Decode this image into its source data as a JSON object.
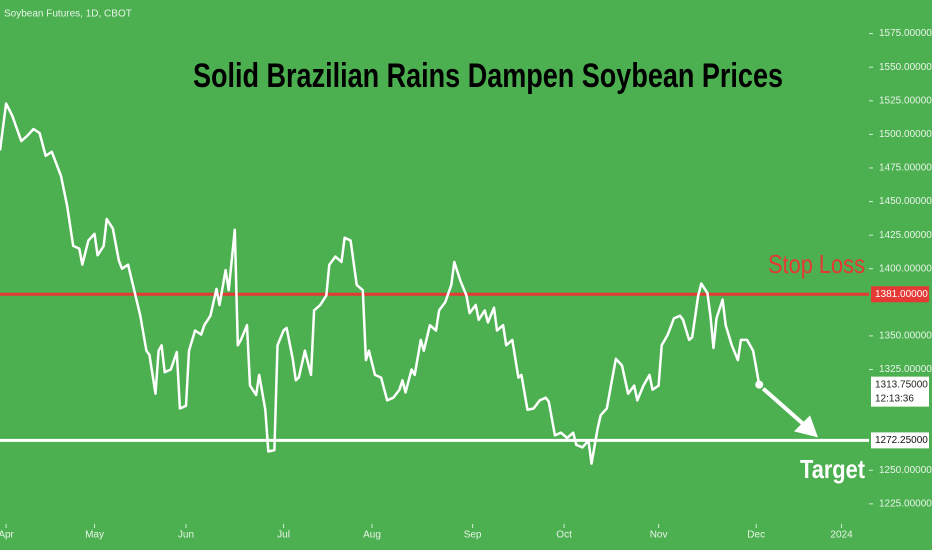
{
  "chart_data": {
    "type": "line",
    "source": "Soybean Futures, 1D, CBOT",
    "title": "Solid Brazilian Rains Dampen Soybean Prices",
    "color": "#ffffff",
    "background": "#4caf50",
    "x": [
      0,
      2,
      4,
      7,
      9,
      11,
      13,
      15,
      17,
      20,
      22,
      24,
      26,
      27,
      29,
      31,
      32,
      34,
      35,
      37,
      39,
      40,
      42,
      44,
      46,
      48,
      49,
      51,
      52,
      53,
      54,
      56,
      58,
      59,
      61,
      62,
      64,
      66,
      67,
      69,
      71,
      72,
      74,
      75,
      77,
      78,
      79,
      81,
      82,
      84,
      85,
      87,
      88,
      90,
      91,
      93,
      94,
      96,
      97,
      98,
      100,
      102,
      103,
      105,
      107,
      108,
      110,
      112,
      113,
      115,
      117,
      119,
      120,
      121,
      123,
      125,
      127,
      129,
      131,
      132,
      133,
      135,
      136,
      138,
      139,
      141,
      143,
      144,
      146,
      148,
      149,
      151,
      153,
      154,
      156,
      157,
      159,
      160,
      162,
      163,
      165,
      166,
      168,
      170,
      171,
      173,
      175,
      177,
      179,
      180,
      182,
      184,
      186,
      188,
      189,
      191,
      193,
      194,
      196,
      197,
      199,
      201,
      202,
      204,
      206,
      208,
      209,
      211,
      213,
      214,
      216,
      217,
      219,
      221,
      223,
      224,
      226,
      227,
      229,
      230,
      232,
      233,
      234,
      235,
      237,
      238,
      240,
      242,
      243,
      245,
      247,
      249
    ],
    "values": [
      1488,
      1523,
      1514,
      1495,
      1499,
      1504,
      1501,
      1484,
      1487,
      1469,
      1447,
      1417,
      1415,
      1403,
      1421,
      1426,
      1410,
      1417,
      1437,
      1430,
      1406,
      1400,
      1403,
      1384,
      1365,
      1339,
      1336,
      1307,
      1339,
      1343,
      1323,
      1325,
      1338,
      1296,
      1298,
      1339,
      1354,
      1351,
      1358,
      1365,
      1385,
      1373,
      1399,
      1384,
      1429,
      1343,
      1347,
      1358,
      1313,
      1306,
      1321,
      1295,
      1264,
      1265,
      1343,
      1354,
      1356,
      1333,
      1317,
      1319,
      1339,
      1321,
      1369,
      1373,
      1380,
      1403,
      1409,
      1405,
      1423,
      1421,
      1388,
      1384,
      1332,
      1339,
      1321,
      1319,
      1302,
      1304,
      1310,
      1317,
      1308,
      1325,
      1321,
      1347,
      1339,
      1358,
      1354,
      1369,
      1375,
      1388,
      1405,
      1391,
      1380,
      1367,
      1373,
      1362,
      1369,
      1360,
      1371,
      1354,
      1358,
      1343,
      1347,
      1319,
      1321,
      1295,
      1296,
      1302,
      1304,
      1301,
      1276,
      1278,
      1274,
      1278,
      1269,
      1267,
      1272,
      1255,
      1281,
      1291,
      1296,
      1321,
      1333,
      1328,
      1307,
      1313,
      1302,
      1313,
      1321,
      1310,
      1313,
      1343,
      1351,
      1363,
      1365,
      1362,
      1347,
      1349,
      1380,
      1389,
      1382,
      1365,
      1341,
      1363,
      1377,
      1358,
      1343,
      1332,
      1347,
      1347,
      1339,
      1313.75
    ],
    "xlim": [
      0,
      285
    ],
    "xticks": [
      {
        "value": 2,
        "label": "Apr"
      },
      {
        "value": 31,
        "label": "May"
      },
      {
        "value": 61,
        "label": "Jun"
      },
      {
        "value": 93,
        "label": "Jul"
      },
      {
        "value": 122,
        "label": "Aug"
      },
      {
        "value": 155,
        "label": "Sep"
      },
      {
        "value": 185,
        "label": "Oct"
      },
      {
        "value": 216,
        "label": "Nov"
      },
      {
        "value": 248,
        "label": "Dec"
      },
      {
        "value": 276,
        "label": "2024"
      }
    ],
    "ylim": [
      1213,
      1600
    ],
    "yticks": [
      {
        "value": 1575,
        "label": "1575.00000"
      },
      {
        "value": 1550,
        "label": "1550.00000"
      },
      {
        "value": 1525,
        "label": "1525.00000"
      },
      {
        "value": 1500,
        "label": "1500.00000"
      },
      {
        "value": 1475,
        "label": "1475.00000"
      },
      {
        "value": 1450,
        "label": "1450.00000"
      },
      {
        "value": 1425,
        "label": "1425.00000"
      },
      {
        "value": 1400,
        "label": "1400.00000"
      },
      {
        "value": 1350,
        "label": "1350.00000"
      },
      {
        "value": 1325,
        "label": "1325.00000"
      },
      {
        "value": 1250,
        "label": "1250.00000"
      },
      {
        "value": 1225,
        "label": "1225.00000"
      }
    ],
    "stop_loss": {
      "text": "Stop Loss",
      "value": 1381,
      "label": "1381.00000",
      "color": "#e53935"
    },
    "target": {
      "text": "Target",
      "value": 1272.25,
      "label": "1272.25000",
      "color": "#ffffff"
    },
    "last_price": {
      "value": 1313.75,
      "label": "1313.75000",
      "countdown": "12:13:36"
    }
  }
}
